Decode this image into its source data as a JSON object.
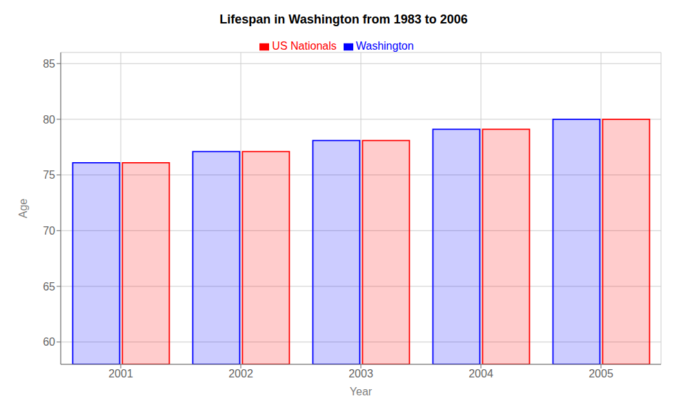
{
  "chart_data": {
    "type": "bar",
    "title": "Lifespan in Washington from 1983 to 2006",
    "xlabel": "Year",
    "ylabel": "Age",
    "categories": [
      "2001",
      "2002",
      "2003",
      "2004",
      "2005"
    ],
    "series": [
      {
        "name": "Washington",
        "color": "#0000ff",
        "values": [
          76.1,
          77.1,
          78.1,
          79.1,
          80.0
        ]
      },
      {
        "name": "US Nationals",
        "color": "#ff0000",
        "values": [
          76.1,
          77.1,
          78.1,
          79.1,
          80.0
        ]
      }
    ],
    "ylim": [
      58,
      86
    ],
    "yticks": [
      60,
      65,
      70,
      75,
      80,
      85
    ],
    "grid": true,
    "legend": "top"
  }
}
